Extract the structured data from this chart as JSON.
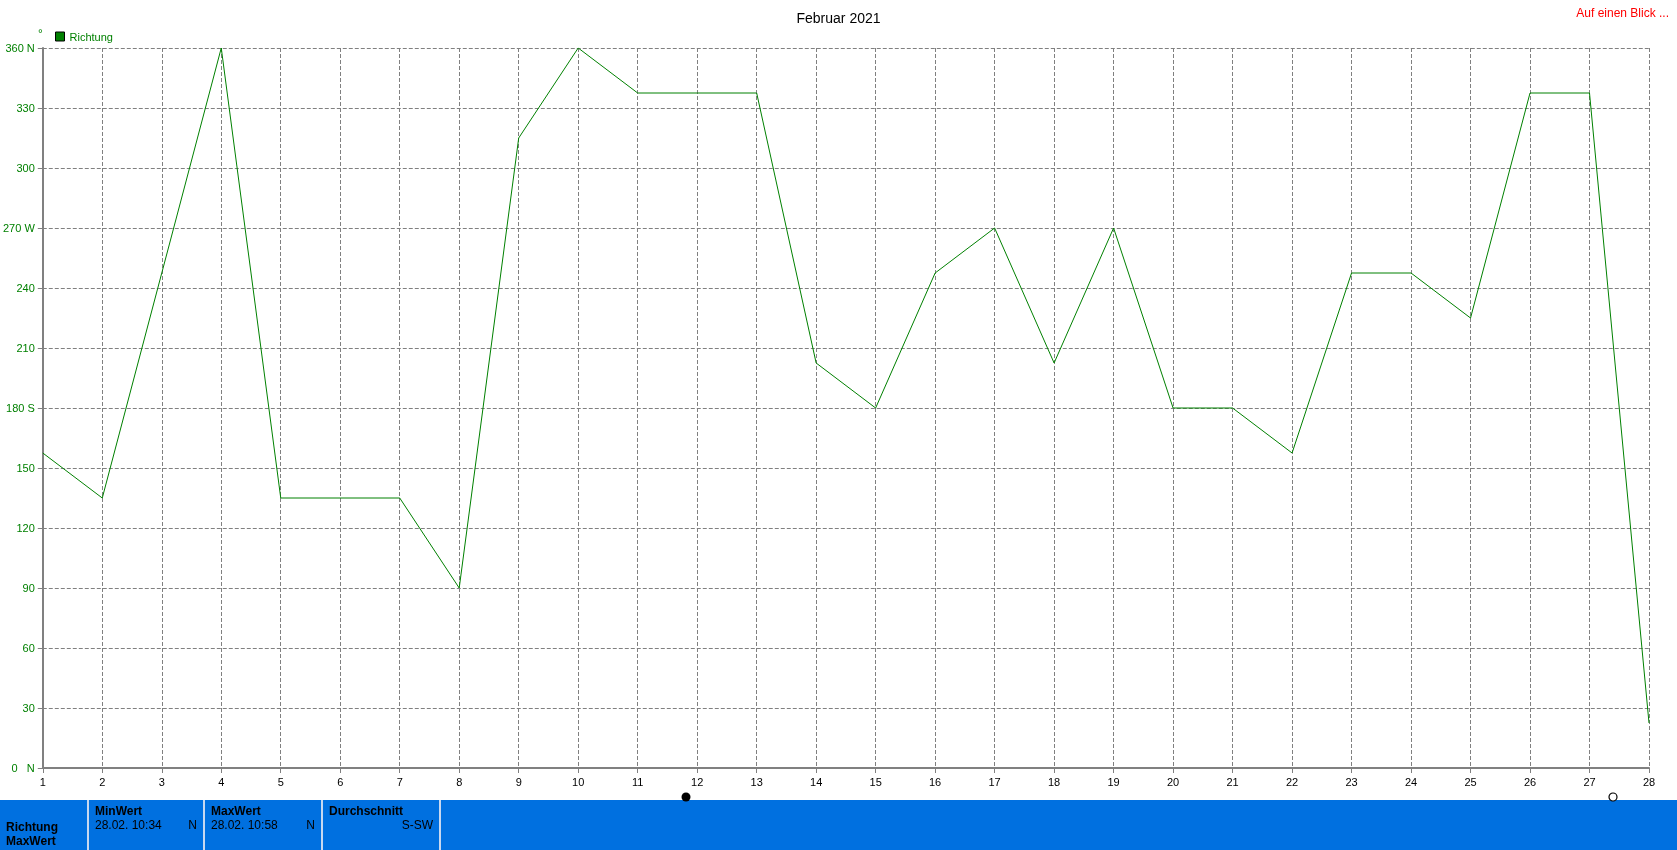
{
  "chart_data": {
    "type": "line",
    "title": "Februar 2021",
    "ylabel": "°",
    "x": [
      1,
      2,
      3,
      4,
      5,
      6,
      7,
      8,
      9,
      10,
      11,
      12,
      13,
      14,
      15,
      16,
      17,
      18,
      19,
      20,
      21,
      22,
      23,
      24,
      25,
      26,
      27,
      28
    ],
    "series": [
      {
        "name": "Richtung",
        "color": "#008000",
        "values": [
          157.5,
          135,
          247.5,
          360,
          135,
          135,
          135,
          90,
          315,
          360,
          337.5,
          337.5,
          337.5,
          202.5,
          180,
          247.5,
          270,
          202.5,
          270,
          180,
          180,
          157.5,
          247.5,
          247.5,
          225,
          337.5,
          337.5,
          22.5
        ]
      }
    ],
    "xlim": [
      1,
      28
    ],
    "xticks": [
      1,
      2,
      3,
      4,
      5,
      6,
      7,
      8,
      9,
      10,
      11,
      12,
      13,
      14,
      15,
      16,
      17,
      18,
      19,
      20,
      21,
      22,
      23,
      24,
      25,
      26,
      27,
      28
    ],
    "ylim": [
      0,
      360
    ],
    "yticks": [
      {
        "value": 0,
        "label": "0   N"
      },
      30,
      60,
      90,
      120,
      150,
      {
        "value": 180,
        "label": "180 S"
      },
      210,
      240,
      {
        "value": 270,
        "label": "270 W"
      },
      300,
      330,
      {
        "value": 360,
        "label": "360 N"
      }
    ],
    "grid": true,
    "legend": "top left",
    "marker": "none",
    "line_style": "solid",
    "annotations": [
      "Auf einen Blick ...",
      "Richtung",
      "MaxWert",
      "MinWert",
      "28.02.  10:34",
      "N",
      "MaxWert",
      "28.02.  10:58",
      "N",
      "Durchschnitt",
      "S-SW"
    ]
  }
}
